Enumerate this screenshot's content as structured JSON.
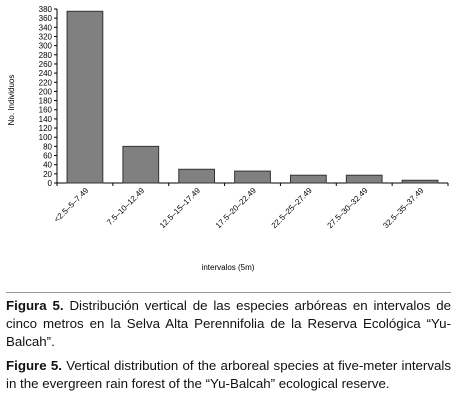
{
  "chart_data": {
    "type": "bar",
    "categories": [
      "<2.5–5–7.49",
      "7.5–10–12.49",
      "12.5–15–17.49",
      "17.5–20–22.49",
      "22.5–25–27.49",
      "27.5–30–32.49",
      "32.5–35–37.49"
    ],
    "values": [
      375,
      80,
      30,
      26,
      17,
      17,
      6
    ],
    "color": "#808080",
    "x_label": "intervalos (5m)",
    "y_label": "No. Individuos",
    "ylim": [
      0,
      380
    ],
    "yticks": [
      0,
      20,
      40,
      60,
      80,
      100,
      120,
      140,
      160,
      180,
      200,
      220,
      240,
      260,
      280,
      300,
      320,
      340,
      360,
      380
    ]
  },
  "captions": [
    {
      "label": "Figura 5.",
      "text": "Distribución vertical de las especies arbóreas en intervalos de cinco metros en la Selva Alta Perennifolia de la Reserva Ecológica “Yu-Balcah”."
    },
    {
      "label": "Figure 5.",
      "text": "Vertical distribution of the arboreal species at five-meter intervals in the evergreen rain forest of the “Yu-Balcah” ecological reserve."
    }
  ]
}
